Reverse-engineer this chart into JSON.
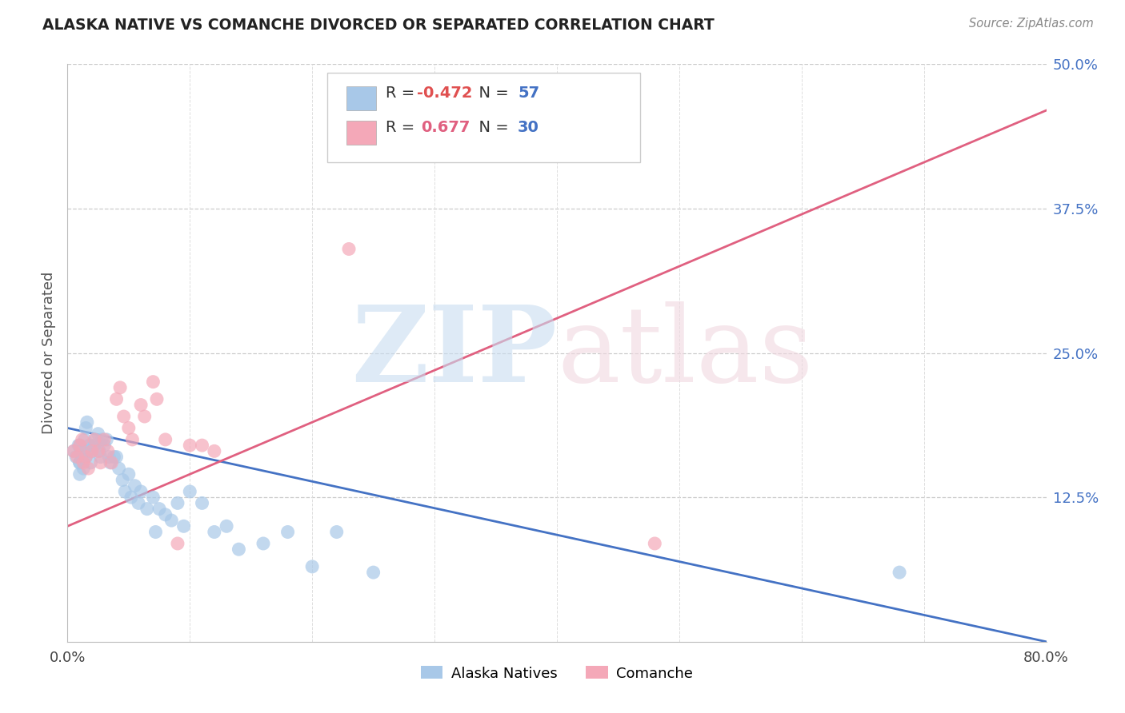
{
  "title": "ALASKA NATIVE VS COMANCHE DIVORCED OR SEPARATED CORRELATION CHART",
  "source": "Source: ZipAtlas.com",
  "ylabel": "Divorced or Separated",
  "xlim": [
    0.0,
    0.8
  ],
  "ylim": [
    0.0,
    0.5
  ],
  "xtick_positions": [
    0.0,
    0.1,
    0.2,
    0.3,
    0.4,
    0.5,
    0.6,
    0.7,
    0.8
  ],
  "xticklabels": [
    "0.0%",
    "",
    "",
    "",
    "",
    "",
    "",
    "",
    "80.0%"
  ],
  "ytick_positions": [
    0.0,
    0.125,
    0.25,
    0.375,
    0.5
  ],
  "yticklabels": [
    "",
    "12.5%",
    "25.0%",
    "37.5%",
    "50.0%"
  ],
  "legend_r1": "R = -0.472",
  "legend_n1": "N = 57",
  "legend_r2": "R =  0.677",
  "legend_n2": "N = 30",
  "color_blue": "#a8c8e8",
  "color_pink": "#f4a8b8",
  "line_blue": "#4472c4",
  "line_pink": "#e06080",
  "blue_trend_x": [
    0.0,
    0.8
  ],
  "blue_trend_y": [
    0.185,
    0.0
  ],
  "pink_trend_x": [
    0.0,
    0.8
  ],
  "pink_trend_y": [
    0.1,
    0.46
  ],
  "alaska_x": [
    0.005,
    0.007,
    0.009,
    0.01,
    0.01,
    0.01,
    0.01,
    0.011,
    0.012,
    0.013,
    0.014,
    0.015,
    0.015,
    0.016,
    0.017,
    0.018,
    0.019,
    0.02,
    0.022,
    0.023,
    0.025,
    0.026,
    0.027,
    0.028,
    0.03,
    0.032,
    0.034,
    0.035,
    0.038,
    0.04,
    0.042,
    0.045,
    0.047,
    0.05,
    0.052,
    0.055,
    0.058,
    0.06,
    0.065,
    0.07,
    0.072,
    0.075,
    0.08,
    0.085,
    0.09,
    0.095,
    0.1,
    0.11,
    0.12,
    0.13,
    0.14,
    0.16,
    0.18,
    0.2,
    0.22,
    0.25,
    0.68
  ],
  "alaska_y": [
    0.165,
    0.16,
    0.17,
    0.155,
    0.145,
    0.155,
    0.17,
    0.165,
    0.16,
    0.15,
    0.175,
    0.185,
    0.16,
    0.19,
    0.165,
    0.17,
    0.155,
    0.165,
    0.17,
    0.175,
    0.18,
    0.165,
    0.16,
    0.175,
    0.17,
    0.175,
    0.16,
    0.155,
    0.16,
    0.16,
    0.15,
    0.14,
    0.13,
    0.145,
    0.125,
    0.135,
    0.12,
    0.13,
    0.115,
    0.125,
    0.095,
    0.115,
    0.11,
    0.105,
    0.12,
    0.1,
    0.13,
    0.12,
    0.095,
    0.1,
    0.08,
    0.085,
    0.095,
    0.065,
    0.095,
    0.06,
    0.06
  ],
  "comanche_x": [
    0.005,
    0.008,
    0.01,
    0.012,
    0.013,
    0.015,
    0.017,
    0.02,
    0.022,
    0.025,
    0.027,
    0.03,
    0.033,
    0.036,
    0.04,
    0.043,
    0.046,
    0.05,
    0.053,
    0.06,
    0.063,
    0.07,
    0.073,
    0.08,
    0.09,
    0.1,
    0.11,
    0.12,
    0.23,
    0.48
  ],
  "comanche_y": [
    0.165,
    0.16,
    0.17,
    0.175,
    0.155,
    0.16,
    0.15,
    0.165,
    0.175,
    0.165,
    0.155,
    0.175,
    0.165,
    0.155,
    0.21,
    0.22,
    0.195,
    0.185,
    0.175,
    0.205,
    0.195,
    0.225,
    0.21,
    0.175,
    0.085,
    0.17,
    0.17,
    0.165,
    0.34,
    0.085
  ]
}
